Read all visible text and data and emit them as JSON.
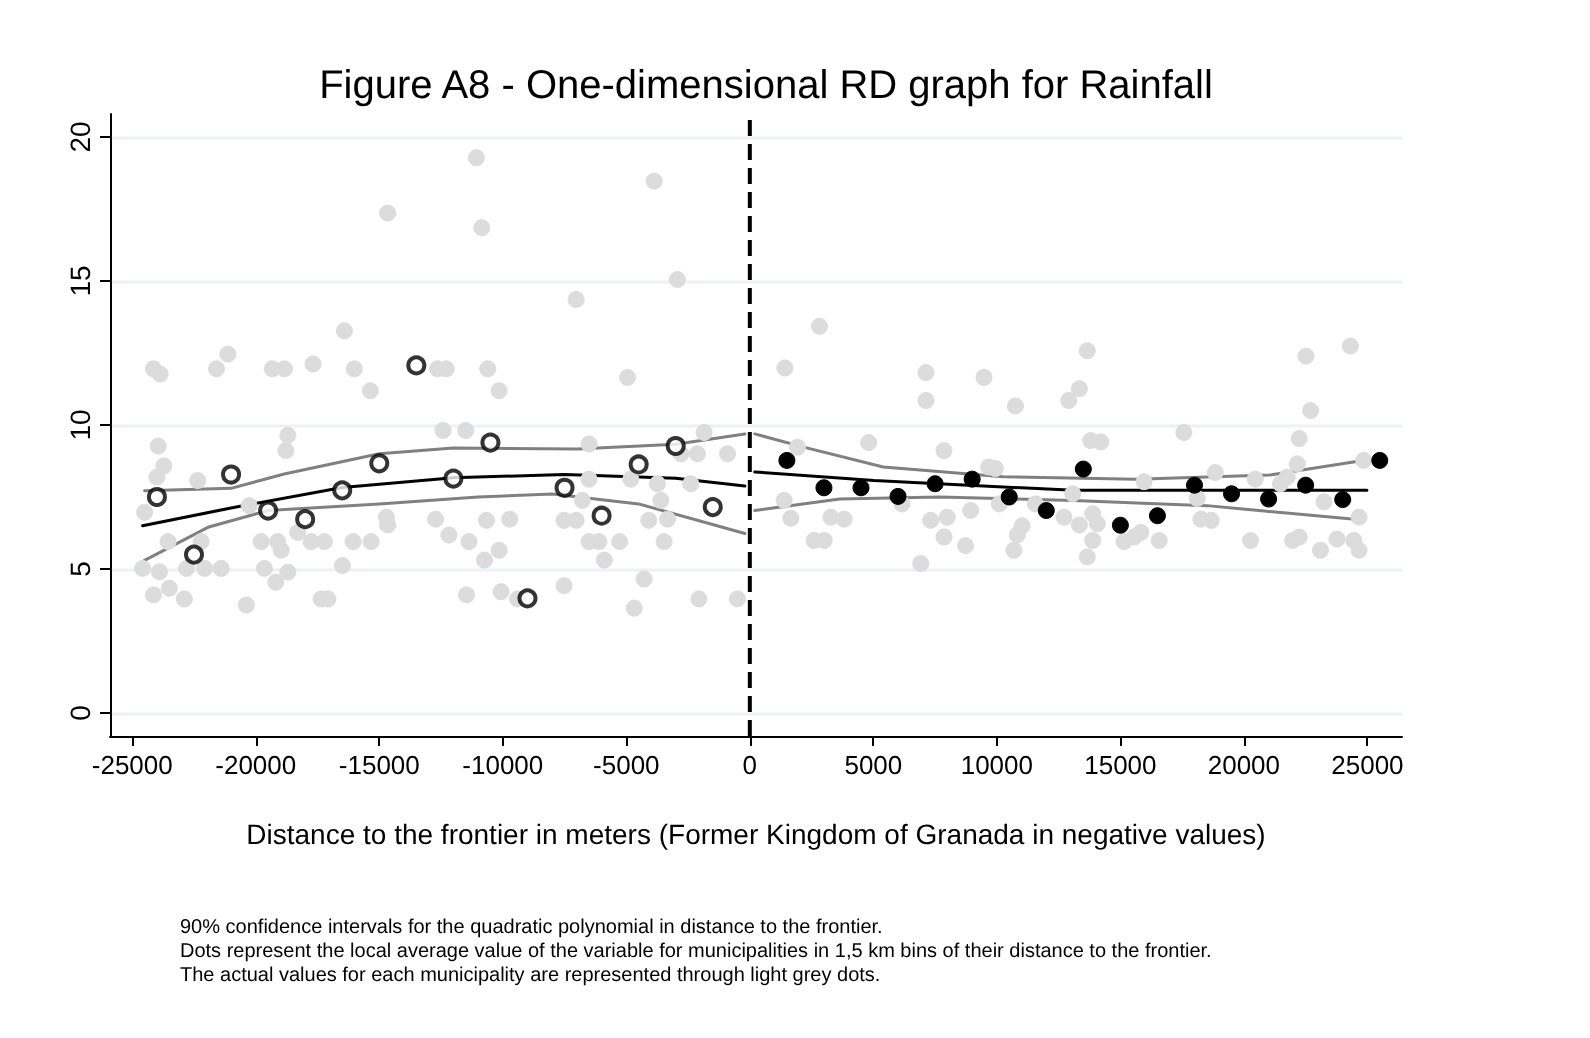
{
  "chart_data": {
    "type": "scatter",
    "title": "Figure A8 - One-dimensional RD graph for Rainfall",
    "xlabel": "Distance to the frontier in meters (Former Kingdom of Granada in negative values)",
    "annotations": [
      "90% confidence intervals for the quadratic polynomial in distance to the frontier.",
      "Dots represent the local average value of the variable for municipalities in 1,5 km bins of their distance to the frontier.",
      "The actual values for each municipality are represented through light grey dots."
    ],
    "xlim": [
      -25900,
      26400
    ],
    "xticks": [
      -25000,
      -20000,
      -15000,
      -10000,
      -5000,
      0,
      5000,
      10000,
      15000,
      20000,
      25000
    ],
    "ylim": [
      -0.8,
      20.8
    ],
    "yticks": [
      0,
      5,
      10,
      15,
      20
    ],
    "grid": "y",
    "ref_lines": [
      {
        "axis": "x",
        "value": 0,
        "color": "#000000",
        "line_style": "dashed"
      }
    ],
    "series": [
      {
        "marker": "circle",
        "color": "#dcdcdc",
        "x": [
          -24580,
          -24140,
          -24140,
          -23870,
          -23950,
          -24000,
          -24500,
          -23900,
          -23720,
          -23500,
          -22890,
          -23550,
          -22800,
          -22350,
          -22210,
          -22070,
          -21590,
          -21130,
          -21400,
          -20380,
          -20270,
          -19780,
          -19330,
          -18840,
          -18700,
          -18780,
          -19650,
          -19110,
          -18970,
          -19190,
          -18700,
          -18300,
          -17680,
          -17760,
          -17350,
          -17080,
          -17220,
          -16490,
          -16410,
          -16010,
          -16060,
          -15360,
          -15330,
          -14660,
          -14710,
          -14660,
          -12640,
          -12290,
          -12720,
          -12420,
          -12180,
          -11500,
          -11470,
          -11370,
          -11070,
          -10850,
          -10610,
          -10150,
          -10660,
          -10740,
          -10150,
          -10070,
          -9720,
          -9400,
          -7520,
          -7520,
          -7030,
          -7030,
          -6510,
          -6510,
          -6780,
          -6510,
          -6110,
          -5890,
          -5270,
          -4950,
          -4820,
          -4680,
          -4280,
          -4090,
          -3870,
          -3740,
          -3600,
          -3470,
          -3330,
          -2930,
          -2790,
          -2390,
          -2120,
          -2060,
          -1850,
          -900,
          -500,
          1420,
          1930,
          1390,
          1660,
          2820,
          2600,
          3010,
          3280,
          3820,
          4810,
          6160,
          7130,
          7130,
          7320,
          7860,
          7860,
          7990,
          6920,
          8730,
          8940,
          9480,
          9670,
          9940,
          10100,
          10750,
          10690,
          10830,
          11020,
          11560,
          12910,
          13340,
          13660,
          13800,
          14210,
          13070,
          12720,
          13340,
          13880,
          14070,
          13880,
          13660,
          15150,
          15560,
          15830,
          15960,
          16570,
          17570,
          18260,
          18680,
          18110,
          18840,
          20270,
          20460,
          21480,
          21750,
          22160,
          22240,
          22510,
          22700,
          21970,
          22240,
          23100,
          23240,
          23770,
          24310,
          24450,
          24660,
          24660,
          24850
        ],
        "values": [
          5.02,
          4.1,
          11.95,
          11.77,
          9.27,
          8.19,
          6.97,
          4.9,
          8.58,
          4.33,
          3.96,
          5.95,
          5.02,
          8.07,
          5.95,
          5.02,
          11.95,
          12.46,
          5.02,
          3.75,
          7.2,
          5.95,
          11.95,
          11.95,
          9.64,
          9.11,
          5.02,
          5.95,
          5.65,
          4.54,
          4.89,
          6.27,
          12.12,
          5.95,
          3.96,
          3.96,
          5.95,
          5.12,
          13.27,
          11.95,
          5.95,
          11.19,
          5.95,
          17.36,
          6.8,
          6.53,
          11.95,
          11.95,
          6.73,
          9.81,
          6.18,
          9.81,
          4.1,
          5.95,
          19.28,
          16.85,
          11.95,
          11.19,
          6.69,
          5.31,
          5.65,
          4.21,
          6.73,
          3.96,
          4.42,
          6.69,
          14.36,
          6.69,
          9.34,
          8.12,
          7.38,
          5.95,
          5.95,
          5.31,
          5.95,
          11.65,
          8.12,
          3.64,
          4.65,
          6.69,
          18.47,
          7.96,
          7.38,
          5.95,
          6.73,
          15.05,
          9.0,
          7.96,
          9.0,
          3.96,
          9.74,
          9.0,
          3.96,
          11.98,
          9.23,
          7.38,
          6.76,
          13.43,
          5.99,
          5.99,
          6.8,
          6.73,
          9.39,
          7.26,
          11.82,
          10.85,
          6.69,
          9.11,
          6.11,
          6.8,
          5.19,
          5.81,
          7.03,
          11.65,
          8.54,
          8.49,
          7.26,
          10.66,
          5.65,
          6.18,
          6.5,
          7.26,
          10.85,
          11.26,
          12.58,
          9.46,
          9.41,
          7.61,
          6.8,
          6.53,
          6.92,
          6.57,
          5.99,
          5.42,
          5.95,
          6.11,
          6.27,
          8.03,
          5.99,
          9.74,
          6.73,
          6.69,
          7.45,
          8.35,
          5.99,
          8.12,
          7.96,
          8.19,
          8.65,
          9.53,
          12.39,
          10.5,
          5.99,
          6.11,
          5.65,
          7.33,
          6.04,
          12.74,
          5.99,
          5.65,
          6.8,
          8.77
        ]
      },
      {
        "type": "line",
        "marker": "none",
        "color": "#808080",
        "x": [
          -24500,
          -21900,
          -19500,
          -15000,
          -11000,
          -8000,
          -4500,
          -200
        ],
        "values": [
          5.3,
          6.46,
          7.03,
          7.26,
          7.5,
          7.6,
          7.26,
          6.23
        ]
      },
      {
        "type": "line",
        "marker": "none",
        "color": "#808080",
        "x": [
          -24500,
          -21000,
          -18850,
          -15000,
          -12000,
          -7000,
          -3000,
          -200
        ],
        "values": [
          7.72,
          7.8,
          8.3,
          9.0,
          9.2,
          9.17,
          9.33,
          9.69
        ]
      },
      {
        "type": "line",
        "marker": "none",
        "color": "#000000",
        "x": [
          -24580,
          -21000,
          -16500,
          -12000,
          -7500,
          -3000,
          -200
        ],
        "values": [
          6.5,
          7.12,
          7.83,
          8.17,
          8.28,
          8.15,
          7.88
        ]
      },
      {
        "type": "line",
        "marker": "none",
        "color": "#808080",
        "x": [
          200,
          3640,
          7680,
          13100,
          18500,
          24820
        ],
        "values": [
          7.03,
          7.43,
          7.5,
          7.38,
          7.2,
          6.7
        ]
      },
      {
        "type": "line",
        "marker": "none",
        "color": "#808080",
        "x": [
          200,
          2180,
          5400,
          10250,
          15640,
          21040,
          24820
        ],
        "values": [
          9.69,
          9.23,
          8.54,
          8.2,
          8.12,
          8.26,
          8.77
        ]
      },
      {
        "type": "line",
        "marker": "none",
        "color": "#000000",
        "x": [
          200,
          5030,
          13120,
          18500,
          24980
        ],
        "values": [
          8.37,
          8.07,
          7.73,
          7.73,
          7.73
        ]
      },
      {
        "marker": "circle",
        "color": "#000000",
        "x": [
          -24000,
          -22500,
          -21000,
          -19500,
          -18000,
          -16500,
          -15000,
          -13500,
          -12000,
          -10500,
          -9000,
          -7500,
          -6000,
          -4500,
          -3000,
          -1500
        ],
        "values": [
          7.5,
          5.5,
          8.28,
          7.03,
          6.73,
          7.73,
          8.67,
          12.07,
          8.14,
          9.39,
          3.98,
          7.82,
          6.85,
          8.63,
          9.27,
          7.15
        ]
      },
      {
        "marker": "circle",
        "color": "#000000",
        "x": [
          1500,
          3000,
          4500,
          6000,
          7500,
          9000,
          10500,
          12000,
          13500,
          15000,
          16500,
          18000,
          19500,
          21000,
          22500,
          24000,
          25500
        ],
        "values": [
          8.77,
          7.82,
          7.82,
          7.52,
          7.96,
          8.12,
          7.5,
          7.03,
          8.47,
          6.52,
          6.85,
          7.91,
          7.61,
          7.43,
          7.91,
          7.41,
          8.77
        ]
      }
    ]
  }
}
